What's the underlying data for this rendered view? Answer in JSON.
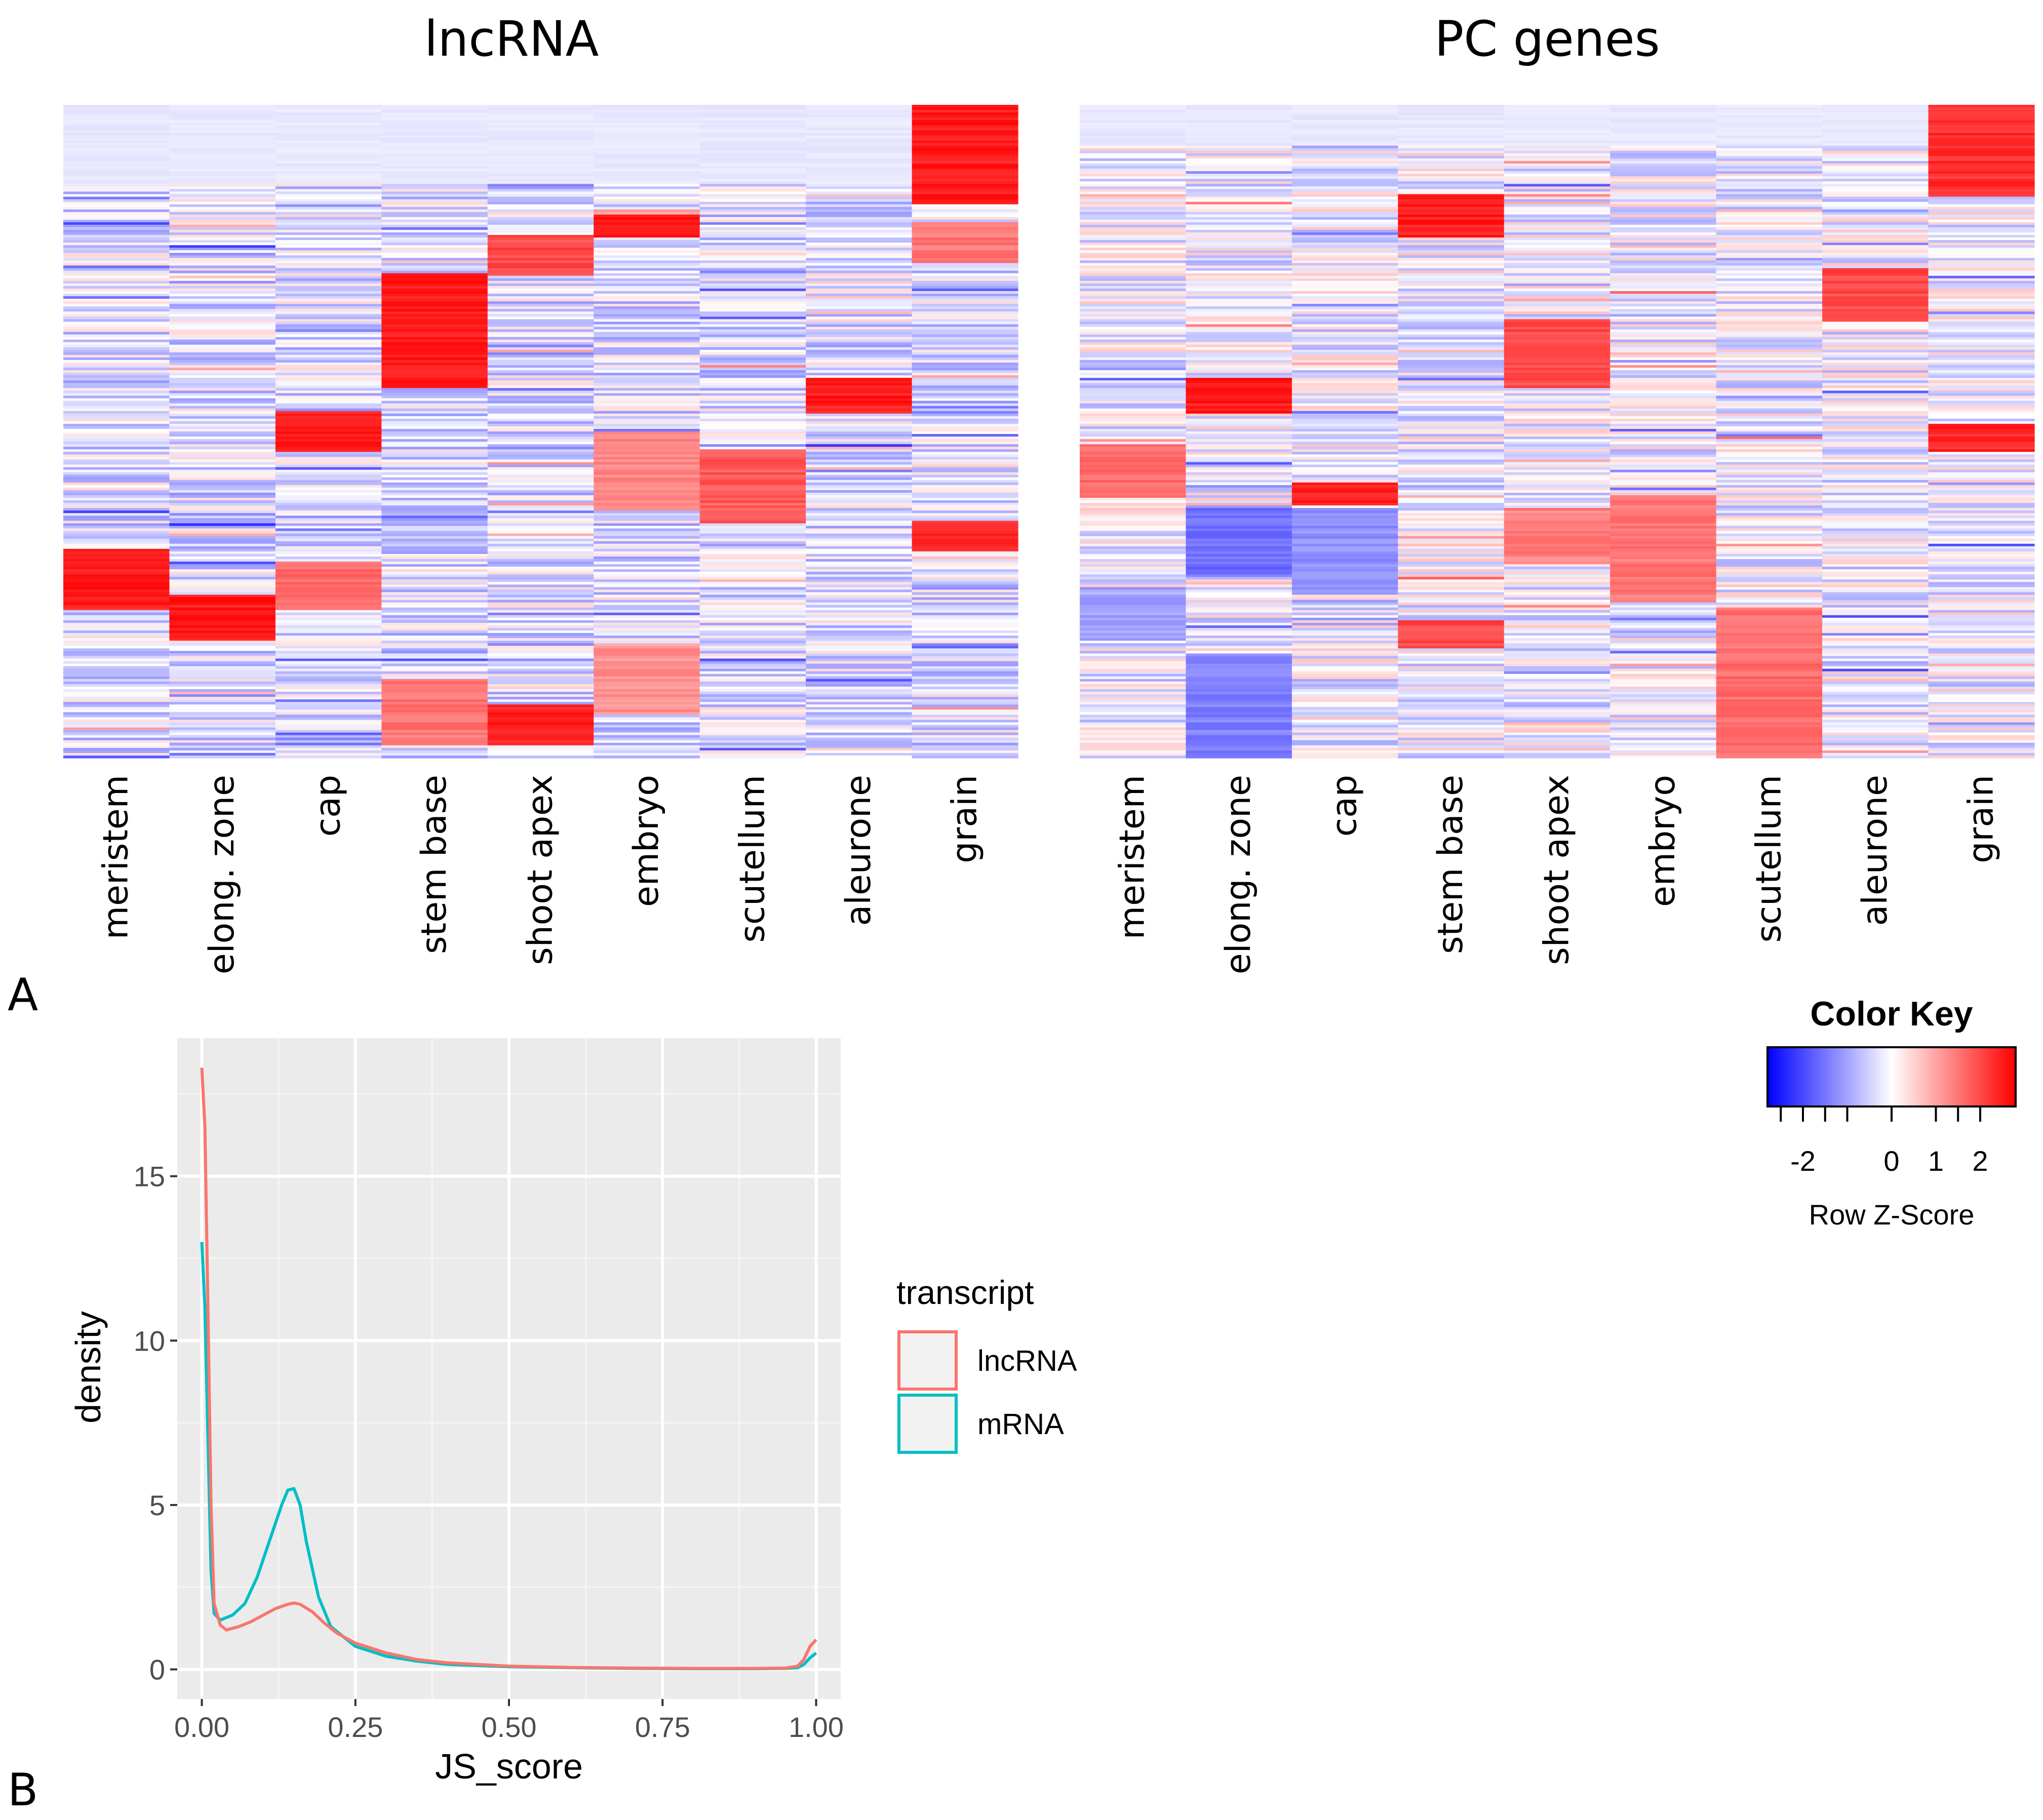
{
  "panels": {
    "a_label": "A",
    "b_label": "B"
  },
  "chart_data": [
    {
      "type": "heatmap",
      "title": "lncRNA",
      "columns": [
        "meristem",
        "elong. zone",
        "cap",
        "stem base",
        "shoot apex",
        "embryo",
        "scutellum",
        "aleurone",
        "grain"
      ],
      "rows": 256,
      "value": "Row Z-Score",
      "blocks": [
        {
          "column": "grain",
          "row_range": [
            0,
            0.15
          ],
          "z": 2.5
        },
        {
          "column": "grain",
          "row_range": [
            0.18,
            0.24
          ],
          "z": 1.5
        },
        {
          "column": "grain",
          "row_range": [
            0.64,
            0.68
          ],
          "z": 2.3
        },
        {
          "column": "stem base",
          "row_range": [
            0.26,
            0.43
          ],
          "z": 2.5
        },
        {
          "column": "stem base",
          "row_range": [
            0.88,
            0.98
          ],
          "z": 1.5
        },
        {
          "column": "shoot apex",
          "row_range": [
            0.2,
            0.26
          ],
          "z": 2.0
        },
        {
          "column": "shoot apex",
          "row_range": [
            0.92,
            0.98
          ],
          "z": 2.5
        },
        {
          "column": "embryo",
          "row_range": [
            0.17,
            0.2
          ],
          "z": 2.5
        },
        {
          "column": "embryo",
          "row_range": [
            0.5,
            0.62
          ],
          "z": 1.3
        },
        {
          "column": "embryo",
          "row_range": [
            0.83,
            0.93
          ],
          "z": 1.2
        },
        {
          "column": "scutellum",
          "row_range": [
            0.53,
            0.64
          ],
          "z": 1.8
        },
        {
          "column": "aleurone",
          "row_range": [
            0.42,
            0.47
          ],
          "z": 2.5
        },
        {
          "column": "cap",
          "row_range": [
            0.47,
            0.53
          ],
          "z": 2.5
        },
        {
          "column": "cap",
          "row_range": [
            0.7,
            0.77
          ],
          "z": 1.6
        },
        {
          "column": "meristem",
          "row_range": [
            0.68,
            0.77
          ],
          "z": 2.5
        },
        {
          "column": "elong. zone",
          "row_range": [
            0.75,
            0.82
          ],
          "z": 2.5
        }
      ]
    },
    {
      "type": "heatmap",
      "title": "PC genes",
      "columns": [
        "meristem",
        "elong. zone",
        "cap",
        "stem base",
        "shoot apex",
        "embryo",
        "scutellum",
        "aleurone",
        "grain"
      ],
      "rows": 256,
      "value": "Row Z-Score",
      "blocks": [
        {
          "column": "grain",
          "row_range": [
            0,
            0.14
          ],
          "z": 2.3
        },
        {
          "column": "grain",
          "row_range": [
            0.49,
            0.53
          ],
          "z": 2.4
        },
        {
          "column": "stem base",
          "row_range": [
            0.14,
            0.2
          ],
          "z": 2.5
        },
        {
          "column": "stem base",
          "row_range": [
            0.79,
            0.83
          ],
          "z": 2.0
        },
        {
          "column": "shoot apex",
          "row_range": [
            0.33,
            0.43
          ],
          "z": 2.0
        },
        {
          "column": "shoot apex",
          "row_range": [
            0.62,
            0.7
          ],
          "z": 1.4
        },
        {
          "column": "aleurone",
          "row_range": [
            0.25,
            0.33
          ],
          "z": 2.0
        },
        {
          "column": "elong. zone",
          "row_range": [
            0.42,
            0.47
          ],
          "z": 2.5
        },
        {
          "column": "cap",
          "row_range": [
            0.58,
            0.61
          ],
          "z": 2.5
        },
        {
          "column": "embryo",
          "row_range": [
            0.6,
            0.76
          ],
          "z": 1.5
        },
        {
          "column": "scutellum",
          "row_range": [
            0.77,
            1.0
          ],
          "z": 1.6
        },
        {
          "column": "meristem",
          "row_range": [
            0.52,
            0.6
          ],
          "z": 1.6
        },
        {
          "column": "elong. zone",
          "row_range": [
            0.62,
            0.72
          ],
          "z": -1.6
        },
        {
          "column": "cap",
          "row_range": [
            0.62,
            0.75
          ],
          "z": -1.2
        },
        {
          "column": "meristem",
          "row_range": [
            0.74,
            0.82
          ],
          "z": -1.0
        },
        {
          "column": "elong. zone",
          "row_range": [
            0.84,
            1.0
          ],
          "z": -1.4
        }
      ]
    },
    {
      "type": "line",
      "subtype": "density",
      "xlabel": "JS_score",
      "ylabel": "density",
      "xlim": [
        -0.04,
        1.04
      ],
      "ylim": [
        -0.9,
        19.2
      ],
      "xticks": [
        "0.00",
        "0.25",
        "0.50",
        "0.75",
        "1.00"
      ],
      "yticks": [
        "0",
        "5",
        "10",
        "15"
      ],
      "legend": {
        "title": "transcript",
        "position": "right"
      },
      "series": [
        {
          "name": "lncRNA",
          "color": "#F8766D",
          "x": [
            0,
            0.005,
            0.01,
            0.015,
            0.02,
            0.03,
            0.04,
            0.06,
            0.08,
            0.1,
            0.12,
            0.14,
            0.15,
            0.16,
            0.18,
            0.2,
            0.22,
            0.25,
            0.3,
            0.35,
            0.4,
            0.5,
            0.6,
            0.7,
            0.8,
            0.9,
            0.95,
            0.97,
            0.98,
            0.99,
            1.0
          ],
          "y": [
            18.3,
            16.5,
            11.0,
            5.0,
            2.0,
            1.35,
            1.2,
            1.3,
            1.45,
            1.65,
            1.85,
            1.98,
            2.02,
            1.98,
            1.75,
            1.4,
            1.1,
            0.8,
            0.5,
            0.3,
            0.2,
            0.1,
            0.06,
            0.04,
            0.03,
            0.03,
            0.04,
            0.1,
            0.3,
            0.7,
            0.9
          ]
        },
        {
          "name": "mRNA",
          "color": "#00BFC4",
          "x": [
            0,
            0.005,
            0.01,
            0.015,
            0.02,
            0.03,
            0.05,
            0.07,
            0.09,
            0.11,
            0.13,
            0.14,
            0.15,
            0.16,
            0.17,
            0.19,
            0.21,
            0.25,
            0.3,
            0.35,
            0.4,
            0.5,
            0.6,
            0.7,
            0.8,
            0.9,
            0.95,
            0.97,
            0.98,
            0.99,
            1.0
          ],
          "y": [
            13.0,
            11.0,
            7.0,
            3.0,
            1.7,
            1.5,
            1.65,
            2.0,
            2.8,
            3.9,
            5.0,
            5.45,
            5.5,
            5.0,
            3.9,
            2.2,
            1.3,
            0.7,
            0.4,
            0.25,
            0.15,
            0.08,
            0.05,
            0.03,
            0.02,
            0.02,
            0.03,
            0.05,
            0.15,
            0.35,
            0.5
          ]
        }
      ]
    }
  ],
  "color_key": {
    "title": "Color Key",
    "label": "Row Z-Score",
    "range": [
      -2.8,
      2.8
    ],
    "ticks": [
      -2.5,
      -2,
      -1.5,
      -1,
      0,
      1,
      1.5,
      2
    ],
    "tick_labels": [
      {
        "value": -2,
        "text": "-2"
      },
      {
        "value": 0,
        "text": "0"
      },
      {
        "value": 1,
        "text": "1"
      },
      {
        "value": 2,
        "text": "2"
      }
    ],
    "low_color": "#0000FF",
    "mid_color": "#FFFFFF",
    "high_color": "#FF0000"
  }
}
